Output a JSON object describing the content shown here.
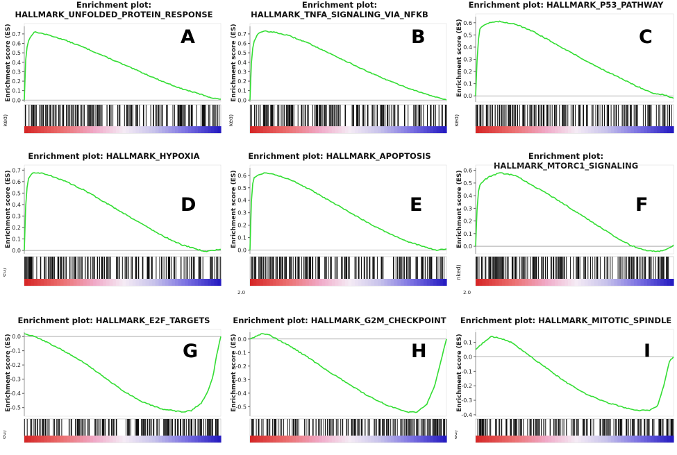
{
  "chart_data": [
    {
      "id": "A",
      "type": "line",
      "title": "Enrichment plot:\nHALLMARK_UNFOLDED_PROTEIN_RESPONSE",
      "panel_label": "A",
      "ylabel": "Enrichment score (ES)",
      "rank_label": "ked)",
      "rank_value": "",
      "yticks": [
        0.0,
        0.1,
        0.2,
        0.3,
        0.4,
        0.5,
        0.6,
        0.7
      ],
      "ylim": [
        -0.02,
        0.78
      ],
      "x": [
        0,
        0.005,
        0.01,
        0.02,
        0.035,
        0.05,
        0.08,
        0.12,
        0.2,
        0.3,
        0.4,
        0.5,
        0.6,
        0.7,
        0.8,
        0.9,
        0.96,
        1.0
      ],
      "es": [
        0.0,
        0.35,
        0.52,
        0.62,
        0.68,
        0.72,
        0.71,
        0.69,
        0.64,
        0.56,
        0.47,
        0.38,
        0.29,
        0.2,
        0.12,
        0.06,
        0.02,
        0.01
      ],
      "hit_density": [
        1.0,
        0.95,
        0.9,
        0.85,
        0.25,
        0.5,
        0.45,
        0.5,
        0.55,
        0.6
      ],
      "colors": {
        "curve": "#33dd33",
        "zero": "#999999"
      }
    },
    {
      "id": "B",
      "type": "line",
      "title": "Enrichment plot:\nHALLMARK_TNFA_SIGNALING_VIA_NFKB",
      "panel_label": "B",
      "ylabel": "Enrichment score (ES)",
      "rank_label": "ked)",
      "rank_value": "",
      "yticks": [
        0.0,
        0.1,
        0.2,
        0.3,
        0.4,
        0.5,
        0.6,
        0.7
      ],
      "ylim": [
        -0.02,
        0.78
      ],
      "x": [
        0,
        0.005,
        0.01,
        0.02,
        0.04,
        0.07,
        0.12,
        0.2,
        0.3,
        0.4,
        0.5,
        0.6,
        0.7,
        0.8,
        0.9,
        1.0
      ],
      "es": [
        0.0,
        0.3,
        0.5,
        0.62,
        0.7,
        0.73,
        0.72,
        0.68,
        0.6,
        0.5,
        0.4,
        0.3,
        0.21,
        0.13,
        0.06,
        0.0
      ],
      "hit_density": [
        1.0,
        0.95,
        0.9,
        0.75,
        0.65,
        0.55,
        0.5,
        0.45,
        0.4,
        0.5
      ],
      "colors": {
        "curve": "#33dd33",
        "zero": "#999999"
      }
    },
    {
      "id": "C",
      "type": "line",
      "title": "Enrichment plot: HALLMARK_P53_PATHWAY",
      "panel_label": "C",
      "ylabel": "Enrichment score (ES)",
      "rank_label": "ked)",
      "rank_value": "",
      "yticks": [
        0.0,
        0.1,
        0.2,
        0.3,
        0.4,
        0.5,
        0.6
      ],
      "ylim": [
        -0.05,
        0.65
      ],
      "x": [
        0,
        0.01,
        0.02,
        0.04,
        0.07,
        0.12,
        0.2,
        0.3,
        0.4,
        0.5,
        0.6,
        0.7,
        0.8,
        0.9,
        0.95,
        1.0
      ],
      "es": [
        0.0,
        0.4,
        0.55,
        0.58,
        0.6,
        0.61,
        0.59,
        0.52,
        0.43,
        0.34,
        0.25,
        0.17,
        0.09,
        0.02,
        0.01,
        -0.02
      ],
      "hit_density": [
        1.0,
        0.95,
        0.85,
        0.75,
        0.6,
        0.55,
        0.5,
        0.55,
        0.5,
        0.45
      ],
      "colors": {
        "curve": "#33dd33",
        "zero": "#999999"
      }
    },
    {
      "id": "D",
      "type": "line",
      "title": "Enrichment plot: HALLMARK_HYPOXIA",
      "panel_label": "D",
      "ylabel": "Enrichment score (ES)",
      "rank_label": "ed)",
      "rank_value": "",
      "yticks": [
        0.0,
        0.1,
        0.2,
        0.3,
        0.4,
        0.5,
        0.6,
        0.7
      ],
      "ylim": [
        -0.03,
        0.72
      ],
      "x": [
        0,
        0.005,
        0.01,
        0.02,
        0.04,
        0.07,
        0.12,
        0.2,
        0.3,
        0.4,
        0.5,
        0.6,
        0.7,
        0.8,
        0.88,
        0.92,
        0.96,
        1.0
      ],
      "es": [
        0.0,
        0.3,
        0.5,
        0.62,
        0.67,
        0.68,
        0.66,
        0.61,
        0.53,
        0.43,
        0.33,
        0.23,
        0.13,
        0.05,
        0.01,
        -0.01,
        0.0,
        0.01
      ],
      "hit_density": [
        1.0,
        0.9,
        0.8,
        0.6,
        0.45,
        0.5,
        0.6,
        0.5,
        0.55,
        0.5
      ],
      "colors": {
        "curve": "#33dd33",
        "zero": "#999999"
      }
    },
    {
      "id": "E",
      "type": "line",
      "title": "Enrichment plot: HALLMARK_APOPTOSIS",
      "panel_label": "E",
      "ylabel": "Enrichment score (ES)",
      "rank_label": "",
      "rank_value": "2.0",
      "yticks": [
        0.0,
        0.1,
        0.2,
        0.3,
        0.4,
        0.5,
        0.6
      ],
      "ylim": [
        -0.03,
        0.66
      ],
      "x": [
        0,
        0.005,
        0.01,
        0.02,
        0.04,
        0.07,
        0.12,
        0.2,
        0.3,
        0.4,
        0.5,
        0.6,
        0.7,
        0.8,
        0.9,
        0.95,
        1.0
      ],
      "es": [
        0.0,
        0.3,
        0.5,
        0.58,
        0.6,
        0.62,
        0.61,
        0.57,
        0.49,
        0.4,
        0.31,
        0.22,
        0.14,
        0.07,
        0.02,
        0.0,
        0.01
      ],
      "hit_density": [
        1.0,
        0.9,
        0.8,
        0.6,
        0.5,
        0.5,
        0.55,
        0.5,
        0.55,
        0.5
      ],
      "colors": {
        "curve": "#33dd33",
        "zero": "#999999"
      }
    },
    {
      "id": "F",
      "type": "line",
      "title": "Enrichment plot: HALLMARK_MTORC1_SIGNALING",
      "panel_label": "F",
      "ylabel": "Enrichment score (ES)",
      "rank_label": "nked)",
      "rank_value": "2.0",
      "yticks": [
        0.0,
        0.1,
        0.2,
        0.3,
        0.4,
        0.5,
        0.6
      ],
      "ylim": [
        -0.06,
        0.62
      ],
      "x": [
        0,
        0.01,
        0.02,
        0.04,
        0.07,
        0.12,
        0.2,
        0.3,
        0.4,
        0.5,
        0.6,
        0.7,
        0.78,
        0.85,
        0.92,
        0.96,
        1.0
      ],
      "es": [
        0.0,
        0.4,
        0.48,
        0.52,
        0.55,
        0.58,
        0.56,
        0.47,
        0.38,
        0.28,
        0.18,
        0.08,
        0.01,
        -0.03,
        -0.04,
        -0.03,
        0.01
      ],
      "hit_density": [
        1.0,
        0.95,
        0.85,
        0.7,
        0.6,
        0.55,
        0.5,
        0.55,
        0.6,
        0.7
      ],
      "colors": {
        "curve": "#33dd33",
        "zero": "#999999"
      }
    },
    {
      "id": "G",
      "type": "line",
      "title": "Enrichment plot: HALLMARK_E2F_TARGETS",
      "panel_label": "G",
      "ylabel": "Enrichment score (ES)",
      "rank_label": "ed)",
      "rank_value": "",
      "yticks": [
        0.0,
        -0.1,
        -0.2,
        -0.3,
        -0.4,
        -0.5
      ],
      "ylim": [
        -0.56,
        0.03
      ],
      "x": [
        0,
        0.05,
        0.1,
        0.2,
        0.3,
        0.4,
        0.5,
        0.6,
        0.7,
        0.8,
        0.85,
        0.9,
        0.93,
        0.96,
        0.98,
        1.0
      ],
      "es": [
        0.02,
        0.0,
        -0.03,
        -0.1,
        -0.18,
        -0.28,
        -0.38,
        -0.46,
        -0.51,
        -0.53,
        -0.52,
        -0.47,
        -0.4,
        -0.28,
        -0.12,
        0.0
      ],
      "hit_density": [
        0.5,
        0.55,
        0.45,
        0.5,
        0.6,
        0.7,
        0.75,
        0.8,
        0.9,
        1.0
      ],
      "colors": {
        "curve": "#33dd33",
        "zero": "#999999"
      }
    },
    {
      "id": "H",
      "type": "line",
      "title": "Enrichment plot: HALLMARK_G2M_CHECKPOINT",
      "panel_label": "H",
      "ylabel": "Enrichment score (ES)",
      "rank_label": "",
      "rank_value": "",
      "yticks": [
        0.0,
        -0.1,
        -0.2,
        -0.3,
        -0.4,
        -0.5
      ],
      "ylim": [
        -0.57,
        0.05
      ],
      "x": [
        0,
        0.03,
        0.06,
        0.1,
        0.2,
        0.3,
        0.4,
        0.5,
        0.6,
        0.7,
        0.8,
        0.85,
        0.9,
        0.94,
        0.97,
        1.0
      ],
      "es": [
        0.0,
        0.02,
        0.04,
        0.03,
        -0.05,
        -0.14,
        -0.24,
        -0.33,
        -0.42,
        -0.49,
        -0.54,
        -0.54,
        -0.48,
        -0.35,
        -0.17,
        0.0
      ],
      "hit_density": [
        0.5,
        0.5,
        0.45,
        0.5,
        0.6,
        0.65,
        0.75,
        0.8,
        0.9,
        1.0
      ],
      "colors": {
        "curve": "#33dd33",
        "zero": "#999999"
      }
    },
    {
      "id": "I",
      "type": "line",
      "title": "Enrichment plot: HALLMARK_MITOTIC_SPINDLE",
      "panel_label": "I",
      "ylabel": "Enrichment score (ES)",
      "rank_label": "ed)",
      "rank_value": "",
      "yticks": [
        0.1,
        0.0,
        -0.1,
        -0.2,
        -0.3,
        -0.4
      ],
      "ylim": [
        -0.41,
        0.17
      ],
      "x": [
        0,
        0.04,
        0.08,
        0.12,
        0.18,
        0.25,
        0.35,
        0.45,
        0.55,
        0.65,
        0.75,
        0.82,
        0.88,
        0.92,
        0.95,
        0.98,
        1.0
      ],
      "es": [
        0.05,
        0.1,
        0.14,
        0.13,
        0.1,
        0.03,
        -0.07,
        -0.17,
        -0.25,
        -0.31,
        -0.35,
        -0.37,
        -0.37,
        -0.34,
        -0.2,
        -0.03,
        0.0
      ],
      "hit_density": [
        0.8,
        0.7,
        0.6,
        0.5,
        0.5,
        0.55,
        0.6,
        0.65,
        0.7,
        0.85
      ],
      "colors": {
        "curve": "#33dd33",
        "zero": "#999999"
      }
    }
  ]
}
